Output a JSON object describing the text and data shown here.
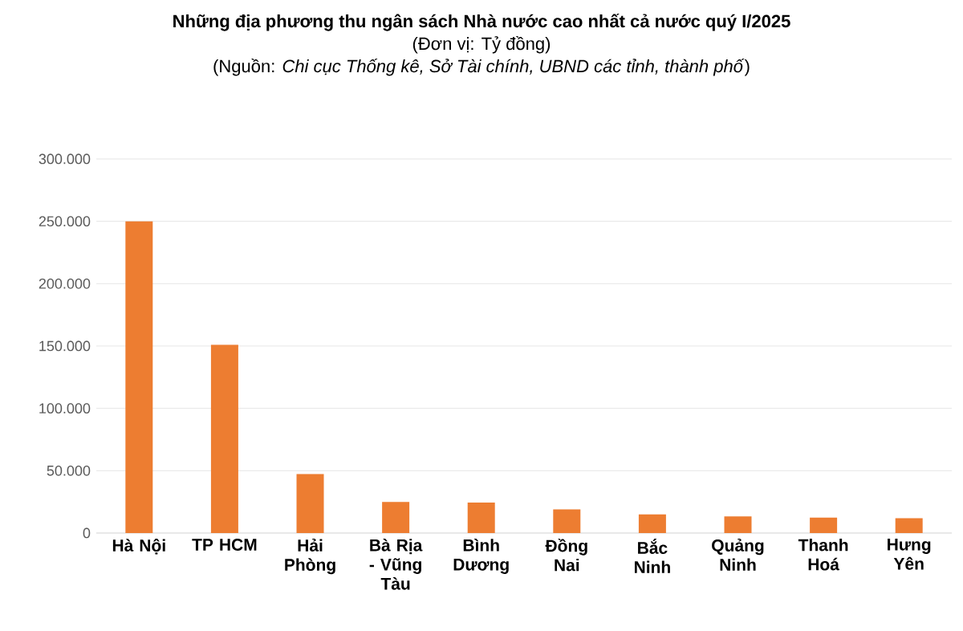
{
  "chart_data": {
    "type": "bar",
    "title": "Những địa phương thu ngân sách Nhà nước cao nhất cả nước quý I/2025",
    "subtitle": "(Đơn vị: Tỷ đồng)",
    "annotations": [
      "(Nguồn: *Chi cục Thống kê, Sở Tài chính, UBND các tỉnh, thành phố*)"
    ],
    "categories": [
      "Hà Nội",
      "TP HCM",
      "Hải Phòng",
      "Bà Rịa - Vũng Tàu",
      "Bình Dương",
      "Đồng Nai",
      "Bắc Ninh",
      "Quảng Ninh",
      "Thanh Hoá",
      "Hưng Yên"
    ],
    "values": [
      250000,
      151000,
      47300,
      24900,
      24400,
      18900,
      14900,
      13400,
      12400,
      11900
    ],
    "color": "#ed7d31",
    "ylim": [
      0,
      300000
    ],
    "yticks": [
      {
        "value": 0,
        "label": "0"
      },
      {
        "value": 50000,
        "label": "50.000"
      },
      {
        "value": 100000,
        "label": "100.000"
      },
      {
        "value": 150000,
        "label": "150.000"
      },
      {
        "value": 200000,
        "label": "200.000"
      },
      {
        "value": 250000,
        "label": "250.000"
      },
      {
        "value": 300000,
        "label": "300.000"
      }
    ],
    "grid": "y"
  }
}
